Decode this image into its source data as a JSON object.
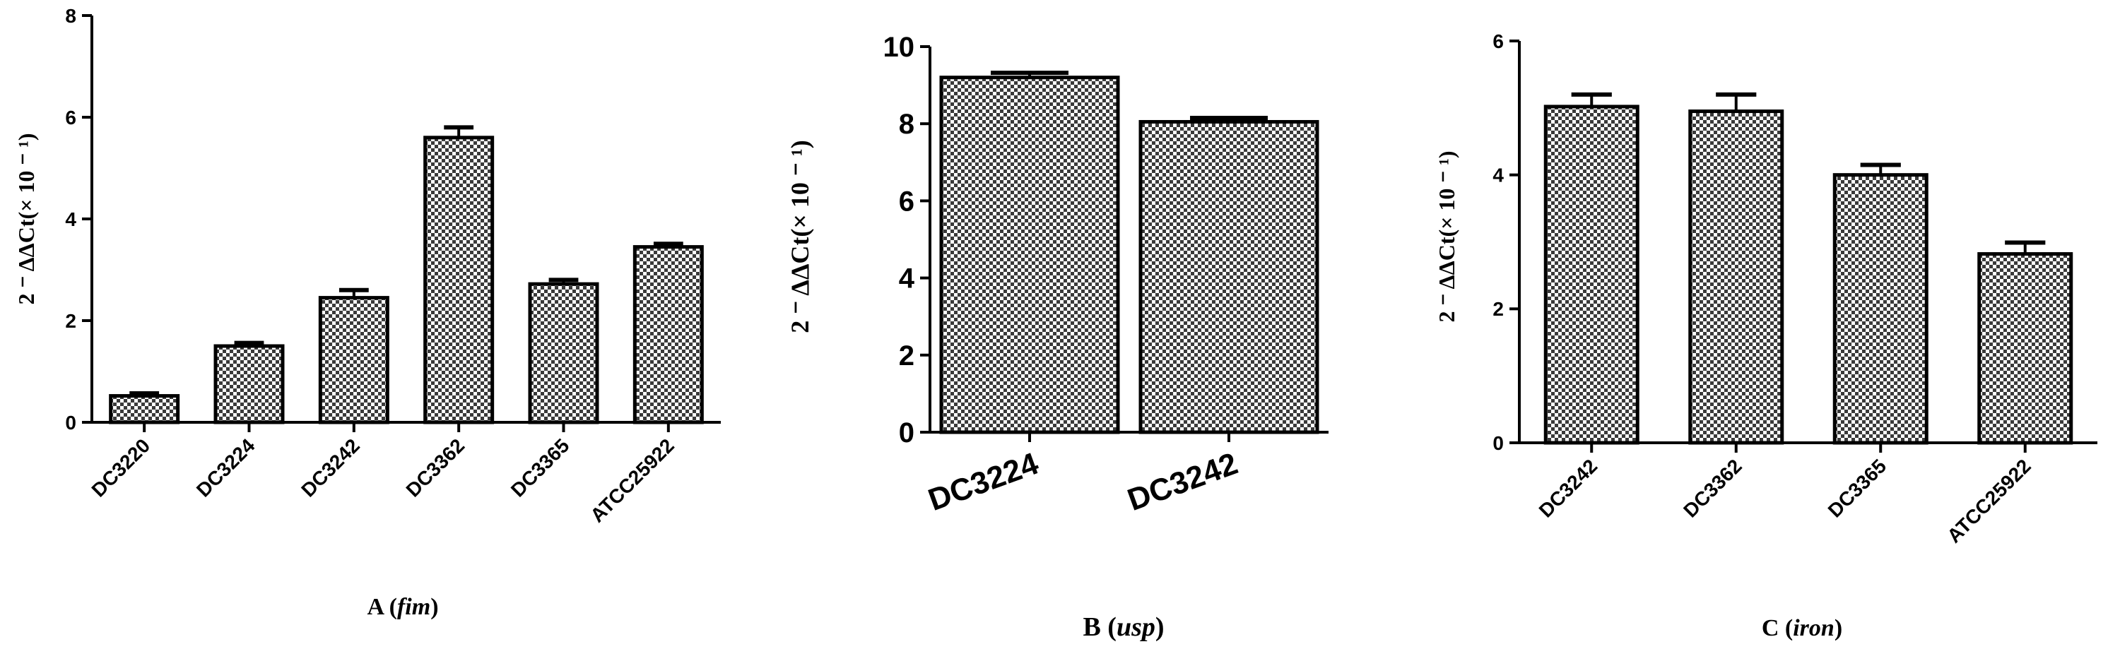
{
  "chart_data": [
    {
      "type": "bar",
      "categories": [
        "DC3220",
        "DC3224",
        "DC3242",
        "DC3362",
        "DC3365",
        "ATCC25922"
      ],
      "values": [
        0.52,
        1.5,
        2.45,
        5.6,
        2.72,
        3.45
      ],
      "errors": [
        0.05,
        0.06,
        0.15,
        0.2,
        0.08,
        0.06
      ],
      "ylim": [
        0,
        8
      ],
      "yticks": [
        "0",
        "2",
        "4",
        "6",
        "8"
      ],
      "ylabel": "2 ⁻ ΔΔCt(× 10 ⁻ ¹)",
      "xlabel": "A (fim)",
      "xlabel_parts": {
        "prefix": "A (",
        "italic": "fim",
        "suffix": ")"
      }
    },
    {
      "type": "bar",
      "categories": [
        "DC3224",
        "DC3242"
      ],
      "values": [
        9.2,
        8.05
      ],
      "errors": [
        0.12,
        0.1
      ],
      "ylim": [
        0,
        10
      ],
      "yticks": [
        "0",
        "2",
        "4",
        "6",
        "8",
        "10"
      ],
      "ylabel": "2 ⁻ ΔΔCt(× 10 ⁻ ¹)",
      "xlabel": "B (usp)",
      "xlabel_parts": {
        "prefix": "B (",
        "italic": "usp",
        "suffix": ")"
      }
    },
    {
      "type": "bar",
      "categories": [
        "DC3242",
        "DC3362",
        "DC3365",
        "ATCC25922"
      ],
      "values": [
        5.02,
        4.95,
        4.0,
        2.82
      ],
      "errors": [
        0.18,
        0.25,
        0.15,
        0.17
      ],
      "ylim": [
        0,
        6
      ],
      "yticks": [
        "0",
        "2",
        "4",
        "6"
      ],
      "ylabel": "2 ⁻ ΔΔCt(× 10 ⁻ ¹)",
      "xlabel": "C (iron)",
      "xlabel_parts": {
        "prefix": "C (",
        "italic": "iron",
        "suffix": ")"
      }
    }
  ]
}
